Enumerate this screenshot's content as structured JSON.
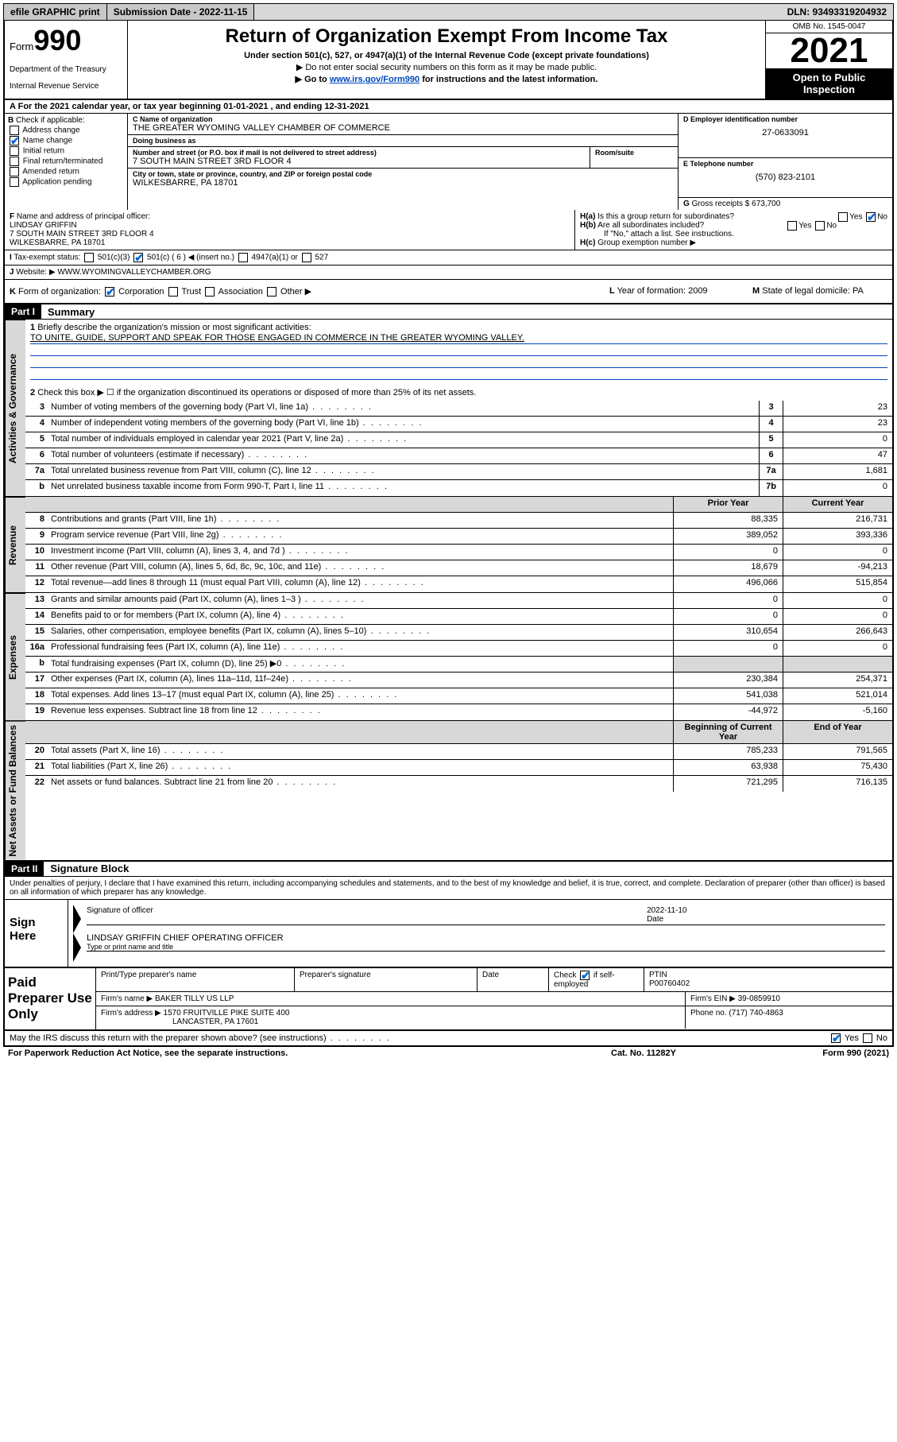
{
  "top": {
    "efile": "efile GRAPHIC print",
    "submission_label": "Submission Date - 2022-11-15",
    "dln": "DLN: 93493319204932"
  },
  "header": {
    "form_word": "Form",
    "form_num": "990",
    "title": "Return of Organization Exempt From Income Tax",
    "sub": "Under section 501(c), 527, or 4947(a)(1) of the Internal Revenue Code (except private foundations)",
    "note1": "Do not enter social security numbers on this form as it may be made public.",
    "note2_pre": "Go to ",
    "note2_link": "www.irs.gov/Form990",
    "note2_post": " for instructions and the latest information.",
    "dept": "Department of the Treasury",
    "irs": "Internal Revenue Service",
    "omb": "OMB No. 1545-0047",
    "year": "2021",
    "inspect": "Open to Public Inspection"
  },
  "A": {
    "text": "For the 2021 calendar year, or tax year beginning 01-01-2021   , and ending 12-31-2021"
  },
  "B": {
    "label": "Check if applicable:",
    "items": [
      "Address change",
      "Name change",
      "Initial return",
      "Final return/terminated",
      "Amended return",
      "Application pending"
    ],
    "checked_idx": 1
  },
  "C": {
    "name_label": "Name of organization",
    "name": "THE GREATER WYOMING VALLEY CHAMBER OF COMMERCE",
    "dba_label": "Doing business as",
    "dba": "",
    "addr_label": "Number and street (or P.O. box if mail is not delivered to street address)",
    "room_label": "Room/suite",
    "addr": "7 SOUTH MAIN STREET 3RD FLOOR 4",
    "city_label": "City or town, state or province, country, and ZIP or foreign postal code",
    "city": "WILKESBARRE, PA  18701"
  },
  "D": {
    "label": "Employer identification number",
    "val": "27-0633091"
  },
  "E": {
    "label": "Telephone number",
    "val": "(570) 823-2101"
  },
  "G": {
    "label": "Gross receipts $",
    "val": "673,700"
  },
  "F": {
    "label": "Name and address of principal officer:",
    "name": "LINDSAY GRIFFIN",
    "addr1": "7 SOUTH MAIN STREET 3RD FLOOR 4",
    "addr2": "WILKESBARRE, PA  18701"
  },
  "H": {
    "a": "Is this a group return for subordinates?",
    "a_no": true,
    "b": "Are all subordinates included?",
    "b_note": "If \"No,\" attach a list. See instructions.",
    "c": "Group exemption number ▶"
  },
  "I": {
    "label": "Tax-exempt status:",
    "opts": [
      "501(c)(3)",
      "501(c) ( 6 ) ◀ (insert no.)",
      "4947(a)(1) or",
      "527"
    ],
    "checked_idx": 1
  },
  "J": {
    "label": "Website: ▶",
    "val": "WWW.WYOMINGVALLEYCHAMBER.ORG"
  },
  "K": {
    "label": "Form of organization:",
    "opts": [
      "Corporation",
      "Trust",
      "Association",
      "Other ▶"
    ],
    "checked_idx": 0
  },
  "L": {
    "label": "Year of formation:",
    "val": "2009"
  },
  "M": {
    "label": "State of legal domicile:",
    "val": "PA"
  },
  "part1": {
    "tag": "Part I",
    "title": "Summary"
  },
  "summary": {
    "q1": "Briefly describe the organization's mission or most significant activities:",
    "mission": "TO UNITE, GUIDE, SUPPORT AND SPEAK FOR THOSE ENGAGED IN COMMERCE IN THE GREATER WYOMING VALLEY.",
    "q2": "Check this box ▶ ☐  if the organization discontinued its operations or disposed of more than 25% of its net assets.",
    "rows_ag": [
      {
        "n": "3",
        "d": "Number of voting members of the governing body (Part VI, line 1a)",
        "box": "3",
        "v": "23"
      },
      {
        "n": "4",
        "d": "Number of independent voting members of the governing body (Part VI, line 1b)",
        "box": "4",
        "v": "23"
      },
      {
        "n": "5",
        "d": "Total number of individuals employed in calendar year 2021 (Part V, line 2a)",
        "box": "5",
        "v": "0"
      },
      {
        "n": "6",
        "d": "Total number of volunteers (estimate if necessary)",
        "box": "6",
        "v": "47"
      },
      {
        "n": "7a",
        "d": "Total unrelated business revenue from Part VIII, column (C), line 12",
        "box": "7a",
        "v": "1,681"
      },
      {
        "n": "b",
        "d": "Net unrelated business taxable income from Form 990-T, Part I, line 11",
        "box": "7b",
        "v": "0"
      }
    ],
    "col_prior": "Prior Year",
    "col_curr": "Current Year",
    "revenue": [
      {
        "n": "8",
        "d": "Contributions and grants (Part VIII, line 1h)",
        "p": "88,335",
        "c": "216,731"
      },
      {
        "n": "9",
        "d": "Program service revenue (Part VIII, line 2g)",
        "p": "389,052",
        "c": "393,336"
      },
      {
        "n": "10",
        "d": "Investment income (Part VIII, column (A), lines 3, 4, and 7d )",
        "p": "0",
        "c": "0"
      },
      {
        "n": "11",
        "d": "Other revenue (Part VIII, column (A), lines 5, 6d, 8c, 9c, 10c, and 11e)",
        "p": "18,679",
        "c": "-94,213"
      },
      {
        "n": "12",
        "d": "Total revenue—add lines 8 through 11 (must equal Part VIII, column (A), line 12)",
        "p": "496,066",
        "c": "515,854"
      }
    ],
    "expenses": [
      {
        "n": "13",
        "d": "Grants and similar amounts paid (Part IX, column (A), lines 1–3 )",
        "p": "0",
        "c": "0"
      },
      {
        "n": "14",
        "d": "Benefits paid to or for members (Part IX, column (A), line 4)",
        "p": "0",
        "c": "0"
      },
      {
        "n": "15",
        "d": "Salaries, other compensation, employee benefits (Part IX, column (A), lines 5–10)",
        "p": "310,654",
        "c": "266,643"
      },
      {
        "n": "16a",
        "d": "Professional fundraising fees (Part IX, column (A), line 11e)",
        "p": "0",
        "c": "0"
      },
      {
        "n": "b",
        "d": "Total fundraising expenses (Part IX, column (D), line 25) ▶0",
        "p": "",
        "c": "",
        "shaded": true
      },
      {
        "n": "17",
        "d": "Other expenses (Part IX, column (A), lines 11a–11d, 11f–24e)",
        "p": "230,384",
        "c": "254,371"
      },
      {
        "n": "18",
        "d": "Total expenses. Add lines 13–17 (must equal Part IX, column (A), line 25)",
        "p": "541,038",
        "c": "521,014"
      },
      {
        "n": "19",
        "d": "Revenue less expenses. Subtract line 18 from line 12",
        "p": "-44,972",
        "c": "-5,160"
      }
    ],
    "col_begin": "Beginning of Current Year",
    "col_end": "End of Year",
    "netassets": [
      {
        "n": "20",
        "d": "Total assets (Part X, line 16)",
        "p": "785,233",
        "c": "791,565"
      },
      {
        "n": "21",
        "d": "Total liabilities (Part X, line 26)",
        "p": "63,938",
        "c": "75,430"
      },
      {
        "n": "22",
        "d": "Net assets or fund balances. Subtract line 21 from line 20",
        "p": "721,295",
        "c": "716,135"
      }
    ]
  },
  "part2": {
    "tag": "Part II",
    "title": "Signature Block"
  },
  "sig": {
    "intro": "Under penalties of perjury, I declare that I have examined this return, including accompanying schedules and statements, and to the best of my knowledge and belief, it is true, correct, and complete. Declaration of preparer (other than officer) is based on all information of which preparer has any knowledge.",
    "sign_here": "Sign Here",
    "sig_officer": "Signature of officer",
    "date_label": "Date",
    "date": "2022-11-10",
    "name": "LINDSAY GRIFFIN  CHIEF OPERATING OFFICER",
    "name_label": "Type or print name and title"
  },
  "prep": {
    "title": "Paid Preparer Use Only",
    "h1": "Print/Type preparer's name",
    "h2": "Preparer's signature",
    "h3": "Date",
    "h4a": "Check",
    "h4b": "if self-employed",
    "h5": "PTIN",
    "ptin": "P00760402",
    "firm_label": "Firm's name    ▶",
    "firm": "BAKER TILLY US LLP",
    "ein_label": "Firm's EIN ▶",
    "ein": "39-0859910",
    "addr_label": "Firm's address ▶",
    "addr1": "1570 FRUITVILLE PIKE SUITE 400",
    "addr2": "LANCASTER, PA  17601",
    "phone_label": "Phone no.",
    "phone": "(717) 740-4863"
  },
  "footer": {
    "discuss": "May the IRS discuss this return with the preparer shown above? (see instructions)",
    "yes_checked": true,
    "paperwork": "For Paperwork Reduction Act Notice, see the separate instructions.",
    "cat": "Cat. No. 11282Y",
    "form": "Form 990 (2021)"
  },
  "vtabs": {
    "ag": "Activities & Governance",
    "rev": "Revenue",
    "exp": "Expenses",
    "na": "Net Assets or Fund Balances"
  }
}
